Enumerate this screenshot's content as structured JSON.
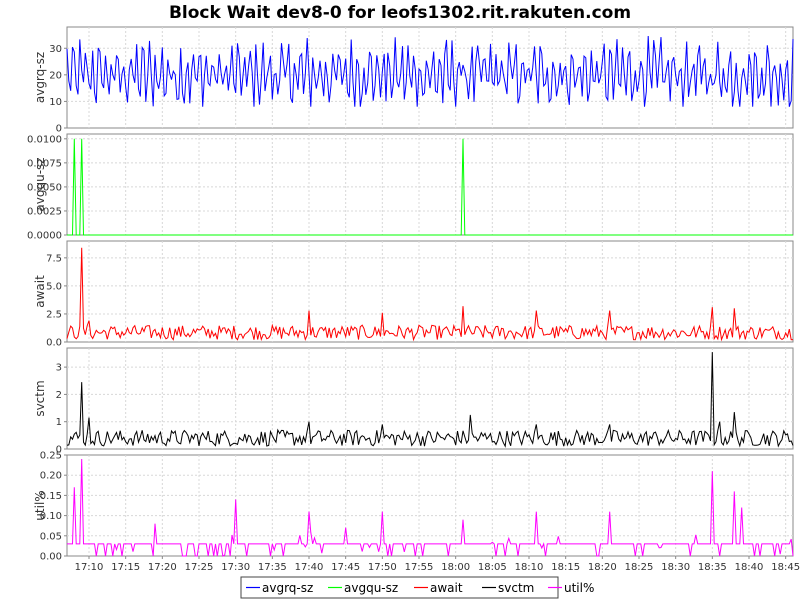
{
  "chart_data": {
    "type": "line",
    "title": "Block Wait dev8-0 for leofs1302.rit.rakuten.com",
    "x": {
      "start_time": "17:07",
      "end_time": "18:46",
      "tick_labels": [
        "17:10",
        "17:15",
        "17:20",
        "17:25",
        "17:30",
        "17:35",
        "17:40",
        "17:45",
        "17:50",
        "17:55",
        "18:00",
        "18:05",
        "18:10",
        "18:15",
        "18:20",
        "18:25",
        "18:30",
        "18:35",
        "18:40",
        "18:45"
      ]
    },
    "grid": true,
    "legend_position": "bottom",
    "panels": [
      {
        "ylabel": "avgrq-sz",
        "ylim": [
          0,
          38
        ],
        "ytick_labels": [
          "0",
          "10",
          "20",
          "30"
        ],
        "series": {
          "name": "avgrq-sz",
          "color": "#0000ff",
          "pattern": "oscillating",
          "baseline": 20,
          "range": [
            8,
            36
          ],
          "spikes": []
        }
      },
      {
        "ylabel": "avgqu-sz",
        "ylim": [
          0,
          0.0105
        ],
        "ytick_labels": [
          "0.0000",
          "0.0025",
          "0.0050",
          "0.0075",
          "0.0100"
        ],
        "series": {
          "name": "avgqu-sz",
          "color": "#00ff00",
          "pattern": "flat",
          "baseline": 0,
          "spikes": [
            {
              "time": "17:08",
              "value": 0.01
            },
            {
              "time": "17:09",
              "value": 0.01
            },
            {
              "time": "18:01",
              "value": 0.01
            }
          ]
        }
      },
      {
        "ylabel": "await",
        "ylim": [
          0,
          9
        ],
        "ytick_labels": [
          "0.0",
          "2.5",
          "5.0",
          "7.5"
        ],
        "series": {
          "name": "await",
          "color": "#ff0000",
          "pattern": "noisy",
          "baseline": 0.7,
          "range": [
            0.2,
            1.5
          ],
          "spikes": [
            {
              "time": "17:09",
              "value": 8.4
            },
            {
              "time": "17:10",
              "value": 1.9
            },
            {
              "time": "17:40",
              "value": 2.8
            },
            {
              "time": "17:50",
              "value": 2.6
            },
            {
              "time": "18:01",
              "value": 3.2
            },
            {
              "time": "18:11",
              "value": 2.8
            },
            {
              "time": "18:21",
              "value": 2.8
            },
            {
              "time": "18:35",
              "value": 3.1
            },
            {
              "time": "18:38",
              "value": 3.0
            }
          ]
        }
      },
      {
        "ylabel": "svctm",
        "ylim": [
          0,
          3.7
        ],
        "ytick_labels": [
          "0",
          "1",
          "2",
          "3"
        ],
        "series": {
          "name": "svctm",
          "color": "#000000",
          "pattern": "noisy",
          "baseline": 0.35,
          "range": [
            0.1,
            0.7
          ],
          "spikes": [
            {
              "time": "17:09",
              "value": 2.45
            },
            {
              "time": "17:10",
              "value": 1.15
            },
            {
              "time": "17:40",
              "value": 1.0
            },
            {
              "time": "17:50",
              "value": 0.9
            },
            {
              "time": "18:02",
              "value": 1.25
            },
            {
              "time": "18:11",
              "value": 0.9
            },
            {
              "time": "18:21",
              "value": 0.9
            },
            {
              "time": "18:35",
              "value": 3.55
            },
            {
              "time": "18:36",
              "value": 1.0
            },
            {
              "time": "18:38",
              "value": 1.35
            }
          ]
        }
      },
      {
        "ylabel": "util%",
        "ylim": [
          0,
          0.25
        ],
        "ytick_labels": [
          "0.00",
          "0.05",
          "0.10",
          "0.15",
          "0.20",
          "0.25"
        ],
        "series": {
          "name": "util%",
          "color": "#ff00ff",
          "pattern": "flat-with-dips",
          "baseline": 0.03,
          "range": [
            0.0,
            0.06
          ],
          "spikes": [
            {
              "time": "17:08",
              "value": 0.17
            },
            {
              "time": "17:09",
              "value": 0.24
            },
            {
              "time": "17:19",
              "value": 0.08
            },
            {
              "time": "17:30",
              "value": 0.14
            },
            {
              "time": "17:40",
              "value": 0.11
            },
            {
              "time": "17:45",
              "value": 0.07
            },
            {
              "time": "17:50",
              "value": 0.11
            },
            {
              "time": "18:01",
              "value": 0.09
            },
            {
              "time": "18:11",
              "value": 0.11
            },
            {
              "time": "18:21",
              "value": 0.11
            },
            {
              "time": "18:35",
              "value": 0.21
            },
            {
              "time": "18:38",
              "value": 0.16
            },
            {
              "time": "18:39",
              "value": 0.12
            }
          ]
        }
      }
    ],
    "legend": [
      "avgrq-sz",
      "avgqu-sz",
      "await",
      "svctm",
      "util%"
    ]
  }
}
